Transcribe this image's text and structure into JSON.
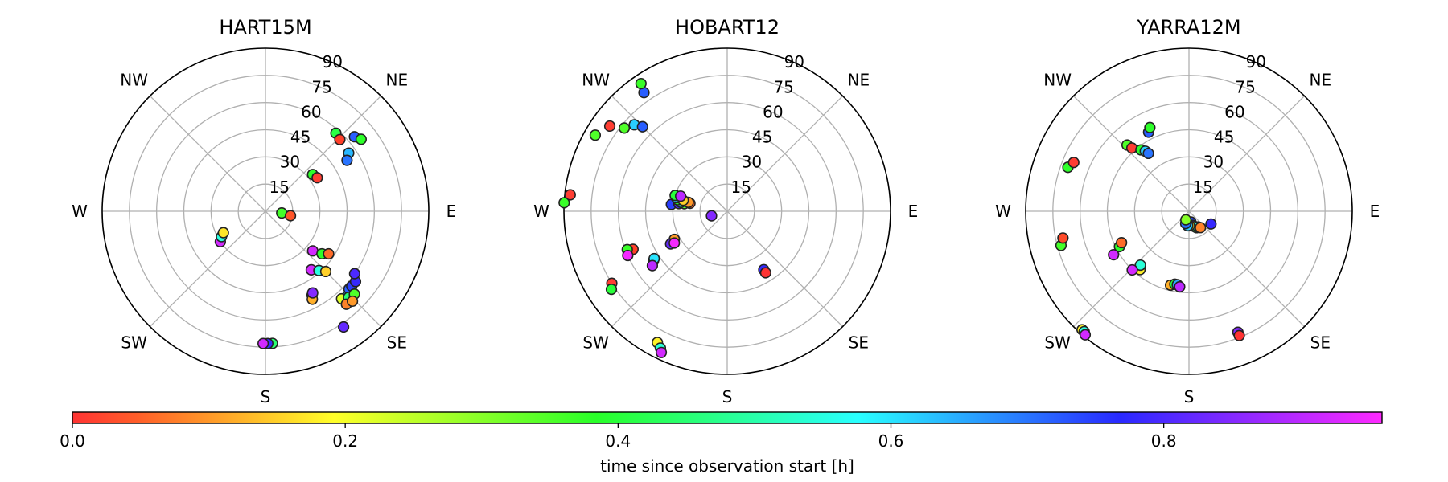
{
  "chart_data": {
    "type": "scatter",
    "projection": "polar",
    "radial_axis": {
      "ticks": [
        15,
        30,
        45,
        60,
        75,
        90
      ],
      "tick_labels": [
        "15",
        "30",
        "45",
        "60",
        "75",
        "90"
      ],
      "lim": [
        0,
        90
      ]
    },
    "compass_labels": [
      "E",
      "NE",
      "NW",
      "W",
      "SW",
      "S",
      "SE"
    ],
    "grid": true,
    "colorbar": {
      "colormap": "gist_rainbow",
      "range": [
        0,
        0.96
      ],
      "ticks": [
        0,
        0.2,
        0.4,
        0.6,
        0.8
      ],
      "tick_labels": [
        "0.0",
        "0.2",
        "0.4",
        "0.6",
        "0.8"
      ],
      "label": "time since observation start [h]",
      "placement": "bottom"
    },
    "panels": [
      {
        "title": "HART15M",
        "points": [
          {
            "az": 42,
            "zen": 58,
            "t": 0.41
          },
          {
            "az": 46,
            "zen": 57,
            "t": 0.02
          },
          {
            "az": 50,
            "zen": 64,
            "t": 0.72
          },
          {
            "az": 53,
            "zen": 66,
            "t": 0.38
          },
          {
            "az": 55,
            "zen": 56,
            "t": 0.64
          },
          {
            "az": 58,
            "zen": 53,
            "t": 0.7
          },
          {
            "az": 52,
            "zen": 33,
            "t": 0.38
          },
          {
            "az": 57,
            "zen": 34,
            "t": 0.01
          },
          {
            "az": 96,
            "zen": 9,
            "t": 0.36
          },
          {
            "az": 100,
            "zen": 14,
            "t": 0.04
          },
          {
            "az": 130,
            "zen": 34,
            "t": 0.92
          },
          {
            "az": 127,
            "zen": 39,
            "t": 0.38
          },
          {
            "az": 124,
            "zen": 42,
            "t": 0.06
          },
          {
            "az": 142,
            "zen": 41,
            "t": 0.92
          },
          {
            "az": 138,
            "zen": 44,
            "t": 0.55
          },
          {
            "az": 135,
            "zen": 47,
            "t": 0.15
          },
          {
            "az": 136,
            "zen": 65,
            "t": 0.65
          },
          {
            "az": 133,
            "zen": 63,
            "t": 0.72
          },
          {
            "az": 131,
            "zen": 63,
            "t": 0.75
          },
          {
            "az": 128,
            "zen": 63,
            "t": 0.78
          },
          {
            "az": 139,
            "zen": 64,
            "t": 0.22
          },
          {
            "az": 136,
            "zen": 66,
            "t": 0.45
          },
          {
            "az": 133,
            "zen": 67,
            "t": 0.35
          },
          {
            "az": 139,
            "zen": 68,
            "t": 0.08
          },
          {
            "az": 136,
            "zen": 69,
            "t": 0.1
          },
          {
            "az": 125,
            "zen": 60,
            "t": 0.8
          },
          {
            "az": 151,
            "zen": 53,
            "t": 0.38
          },
          {
            "az": 152,
            "zen": 55,
            "t": 0.12
          },
          {
            "az": 150,
            "zen": 52,
            "t": 0.85
          },
          {
            "az": 146,
            "zen": 77,
            "t": 0.82
          },
          {
            "az": 177,
            "zen": 73,
            "t": 0.45
          },
          {
            "az": 179,
            "zen": 73,
            "t": 0.78
          },
          {
            "az": 181,
            "zen": 73,
            "t": 0.92
          },
          {
            "az": 236,
            "zen": 30,
            "t": 0.92
          },
          {
            "az": 240,
            "zen": 28,
            "t": 0.55
          },
          {
            "az": 243,
            "zen": 26,
            "t": 0.17
          }
        ]
      },
      {
        "title": "HOBART12",
        "points": [
          {
            "az": 325,
            "zen": 80,
            "t": 0.72
          },
          {
            "az": 326,
            "zen": 85,
            "t": 0.37
          },
          {
            "az": 309,
            "zen": 73,
            "t": 0.35
          },
          {
            "az": 306,
            "zen": 80,
            "t": 0.01
          },
          {
            "az": 300,
            "zen": 84,
            "t": 0.35
          },
          {
            "az": 313,
            "zen": 70,
            "t": 0.62
          },
          {
            "az": 315,
            "zen": 66,
            "t": 0.72
          },
          {
            "az": 276,
            "zen": 87,
            "t": 0.01
          },
          {
            "az": 273,
            "zen": 90,
            "t": 0.37
          },
          {
            "az": 277,
            "zen": 31,
            "t": 0.75
          },
          {
            "az": 279,
            "zen": 27,
            "t": 0.8
          },
          {
            "az": 280,
            "zen": 24,
            "t": 0.35
          },
          {
            "az": 282,
            "zen": 21,
            "t": 0.05
          },
          {
            "az": 281,
            "zen": 26,
            "t": 0.55
          },
          {
            "az": 283,
            "zen": 28,
            "t": 0.38
          },
          {
            "az": 285,
            "zen": 29,
            "t": 0.62
          },
          {
            "az": 287,
            "zen": 30,
            "t": 0.4
          },
          {
            "az": 283,
            "zen": 22,
            "t": 0.1
          },
          {
            "az": 284,
            "zen": 25,
            "t": 0.15
          },
          {
            "az": 288,
            "zen": 27,
            "t": 0.9
          },
          {
            "az": 254,
            "zen": 9,
            "t": 0.85
          },
          {
            "az": 242,
            "zen": 33,
            "t": 0.1
          },
          {
            "az": 240,
            "zen": 36,
            "t": 0.82
          },
          {
            "az": 239,
            "zen": 34,
            "t": 0.95
          },
          {
            "az": 236,
            "zen": 49,
            "t": 0.15
          },
          {
            "az": 237,
            "zen": 48,
            "t": 0.6
          },
          {
            "az": 234,
            "zen": 51,
            "t": 0.9
          },
          {
            "az": 248,
            "zen": 56,
            "t": 0.02
          },
          {
            "az": 249,
            "zen": 59,
            "t": 0.37
          },
          {
            "az": 246,
            "zen": 60,
            "t": 0.95
          },
          {
            "az": 238,
            "zen": 75,
            "t": 0.01
          },
          {
            "az": 236,
            "zen": 77,
            "t": 0.4
          },
          {
            "az": 208,
            "zen": 82,
            "t": 0.18
          },
          {
            "az": 206,
            "zen": 84,
            "t": 0.54
          },
          {
            "az": 205,
            "zen": 86,
            "t": 0.92
          },
          {
            "az": 148,
            "zen": 38,
            "t": 0.78
          },
          {
            "az": 148,
            "zen": 40,
            "t": 0.0
          }
        ]
      },
      {
        "title": "YARRA12M",
        "points": [
          {
            "az": 333,
            "zen": 49,
            "t": 0.72
          },
          {
            "az": 335,
            "zen": 51,
            "t": 0.38
          },
          {
            "az": 317,
            "zen": 50,
            "t": 0.35
          },
          {
            "az": 318,
            "zen": 47,
            "t": 0.01
          },
          {
            "az": 322,
            "zen": 43,
            "t": 0.38
          },
          {
            "az": 324,
            "zen": 41,
            "t": 0.62
          },
          {
            "az": 325,
            "zen": 39,
            "t": 0.7
          },
          {
            "az": 290,
            "zen": 71,
            "t": 0.38
          },
          {
            "az": 293,
            "zen": 69,
            "t": 0.01
          },
          {
            "az": 255,
            "zen": 73,
            "t": 0.36
          },
          {
            "az": 258,
            "zen": 71,
            "t": 0.03
          },
          {
            "az": 222,
            "zen": 88,
            "t": 0.18
          },
          {
            "az": 221,
            "zen": 88,
            "t": 0.55
          },
          {
            "az": 220,
            "zen": 89,
            "t": 0.92
          },
          {
            "az": 240,
            "zen": 48,
            "t": 0.92
          },
          {
            "az": 243,
            "zen": 43,
            "t": 0.38
          },
          {
            "az": 245,
            "zen": 41,
            "t": 0.06
          },
          {
            "az": 220,
            "zen": 42,
            "t": 0.18
          },
          {
            "az": 222,
            "zen": 40,
            "t": 0.54
          },
          {
            "az": 224,
            "zen": 45,
            "t": 0.92
          },
          {
            "az": 194,
            "zen": 42,
            "t": 0.12
          },
          {
            "az": 191,
            "zen": 41,
            "t": 0.4
          },
          {
            "az": 189,
            "zen": 41,
            "t": 0.65
          },
          {
            "az": 187,
            "zen": 42,
            "t": 0.9
          },
          {
            "az": 170,
            "zen": 6,
            "t": 0.74
          },
          {
            "az": 165,
            "zen": 8,
            "t": 0.82
          },
          {
            "az": 160,
            "zen": 9,
            "t": 0.16
          },
          {
            "az": 155,
            "zen": 10,
            "t": 0.4
          },
          {
            "az": 150,
            "zen": 10,
            "t": 0.55
          },
          {
            "az": 145,
            "zen": 11,
            "t": 0.08
          },
          {
            "az": 178,
            "zen": 8,
            "t": 0.18
          },
          {
            "az": 185,
            "zen": 8,
            "t": 0.62
          },
          {
            "az": 195,
            "zen": 7,
            "t": 0.7
          },
          {
            "az": 200,
            "zen": 5,
            "t": 0.3
          },
          {
            "az": 120,
            "zen": 14,
            "t": 0.78
          },
          {
            "az": 158,
            "zen": 72,
            "t": 0.85
          },
          {
            "az": 158,
            "zen": 74,
            "t": 0.0
          }
        ]
      }
    ]
  }
}
